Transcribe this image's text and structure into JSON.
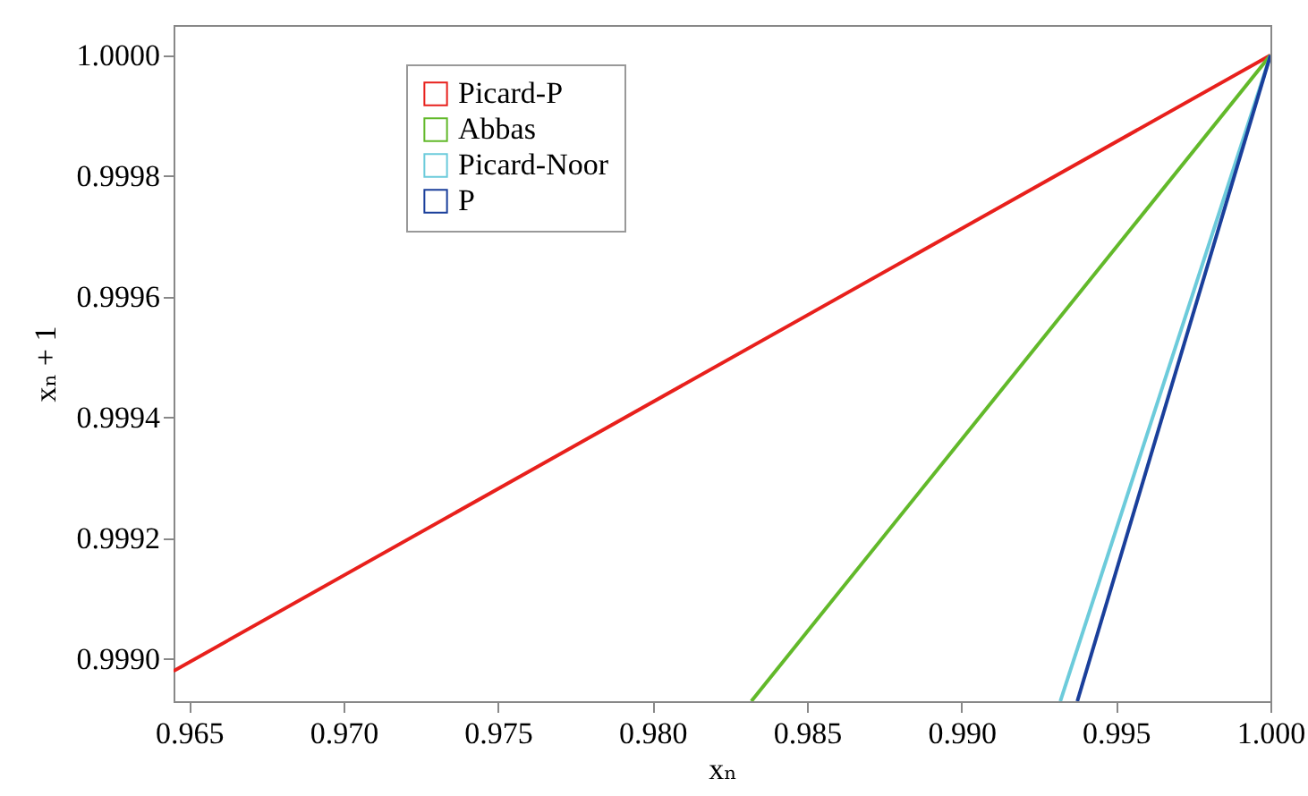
{
  "chart_data": {
    "type": "line",
    "xlabel": "xₙ",
    "ylabel": "xₙ + 1",
    "xlim": [
      0.9645,
      1.0
    ],
    "xticks": [
      0.965,
      {
        "value": 0.97,
        "label": "0.970"
      },
      0.975,
      {
        "value": 0.98,
        "label": "0.980"
      },
      0.985,
      {
        "value": 0.99,
        "label": "0.990"
      },
      0.995,
      {
        "value": 1.0,
        "label": "1.000"
      }
    ],
    "ylim": [
      0.99893,
      1.00005
    ],
    "yticks": [
      {
        "value": 0.999,
        "label": "0.9990"
      },
      0.9992,
      0.9994,
      0.9996,
      0.9998,
      {
        "value": 1.0,
        "label": "1.0000"
      }
    ],
    "grid": false,
    "legend": "top left",
    "series": [
      {
        "name": "Picard-P",
        "color": "#e8201c",
        "x": [
          0.9645,
          1.0
        ],
        "values": [
          0.99898,
          1.0
        ]
      },
      {
        "name": "Abbas",
        "color": "#62b92a",
        "x": [
          0.9832,
          1.0
        ],
        "values": [
          0.99893,
          1.0
        ]
      },
      {
        "name": "Picard-Noor",
        "color": "#6ccbdb",
        "x": [
          0.9932,
          1.0
        ],
        "values": [
          0.99893,
          1.0
        ]
      },
      {
        "name": "P",
        "color": "#1a3f9b",
        "x": [
          0.99375,
          1.0
        ],
        "values": [
          0.99893,
          1.0
        ]
      }
    ]
  }
}
